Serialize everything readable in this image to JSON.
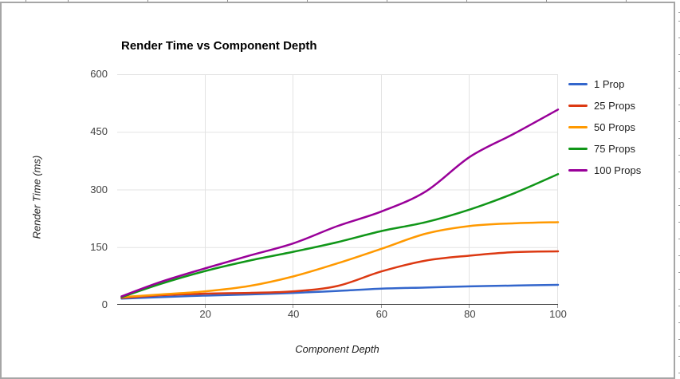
{
  "chart_data": {
    "type": "line",
    "title": "Render Time vs Component Depth",
    "xlabel": "Component Depth",
    "ylabel": "Render Time (ms)",
    "xlim": [
      0,
      100
    ],
    "ylim": [
      0,
      600
    ],
    "x_ticks": [
      20,
      40,
      60,
      80,
      100
    ],
    "y_ticks": [
      0,
      150,
      300,
      450,
      600
    ],
    "grid": true,
    "legend_position": "right",
    "x": [
      1,
      10,
      20,
      30,
      40,
      50,
      60,
      70,
      80,
      90,
      100
    ],
    "series": [
      {
        "name": "1 Prop",
        "color": "#3366CC",
        "values": [
          16,
          20,
          24,
          27,
          31,
          36,
          42,
          45,
          48,
          50,
          52
        ]
      },
      {
        "name": "25 Props",
        "color": "#DC3912",
        "values": [
          18,
          25,
          29,
          31,
          35,
          49,
          87,
          115,
          128,
          137,
          139
        ]
      },
      {
        "name": "50 Props",
        "color": "#FF9900",
        "values": [
          20,
          27,
          35,
          49,
          74,
          108,
          146,
          185,
          205,
          212,
          215
        ]
      },
      {
        "name": "75 Props",
        "color": "#109618",
        "values": [
          20,
          55,
          88,
          115,
          138,
          163,
          192,
          215,
          248,
          290,
          340
        ]
      },
      {
        "name": "100 Props",
        "color": "#990099",
        "values": [
          22,
          60,
          95,
          128,
          160,
          205,
          243,
          295,
          385,
          445,
          508
        ]
      }
    ],
    "colors": {
      "gridline": "#e3e3e3",
      "baseline": "#424242",
      "tick_text": "#424242",
      "frame_border": "#a6a6a6"
    }
  }
}
